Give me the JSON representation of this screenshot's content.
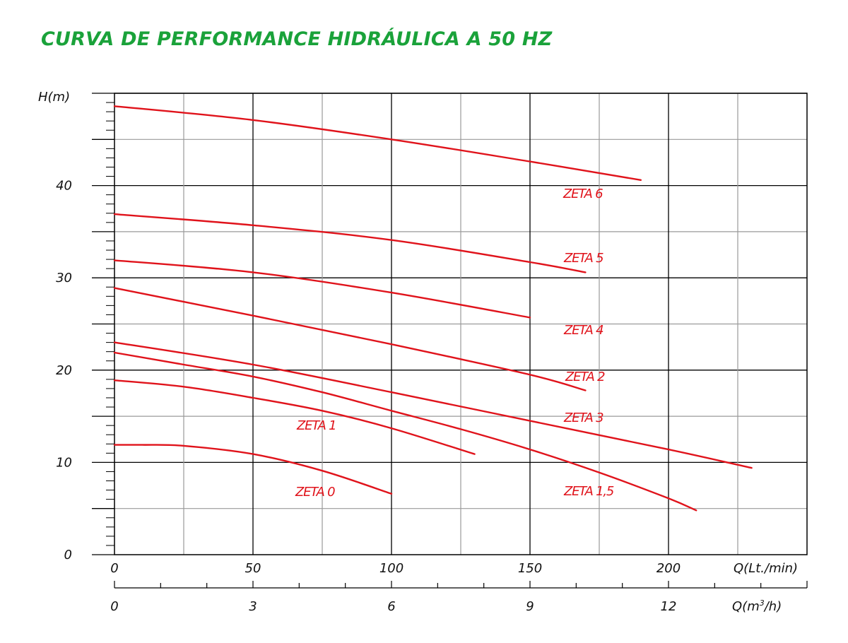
{
  "title": "CURVA DE PERFORMANCE HIDRÁULICA A 50 HZ",
  "colors": {
    "title": "#1aa23a",
    "curves": "#e0131b",
    "major_grid": "#000000",
    "minor_grid": "#9a9a9a"
  },
  "chart_data": {
    "type": "line",
    "title": "CURVA DE PERFORMANCE HIDRÁULICA A 50 HZ",
    "ylabel": "H(m)",
    "xlabel": "Q(Lt./min)",
    "x2label_prefix": "Q(m",
    "x2label_sup": "3",
    "x2label_suffix": "/h)",
    "xlim": [
      0,
      250
    ],
    "ylim": [
      0,
      50
    ],
    "x2lim": [
      0,
      15
    ],
    "grid": true,
    "x_ticks": [
      "0",
      "50",
      "100",
      "150",
      "200"
    ],
    "x2_ticks": [
      "0",
      "3",
      "6",
      "9",
      "12"
    ],
    "y_ticks": [
      "0",
      "10",
      "20",
      "30",
      "40"
    ],
    "series": [
      {
        "name": "ZETA 0",
        "label": "ZETA 0",
        "x": [
          0,
          10,
          25,
          50,
          75,
          100
        ],
        "y": [
          11.9,
          11.9,
          11.8,
          10.9,
          9.1,
          6.6
        ]
      },
      {
        "name": "ZETA 1",
        "label": "ZETA 1",
        "x": [
          0,
          25,
          50,
          75,
          100,
          130
        ],
        "y": [
          18.9,
          18.2,
          17.0,
          15.6,
          13.7,
          10.9
        ]
      },
      {
        "name": "ZETA 1,5",
        "label": "ZETA 1,5",
        "x": [
          0,
          25,
          50,
          75,
          100,
          125,
          150,
          175,
          200,
          210
        ],
        "y": [
          21.9,
          20.6,
          19.3,
          17.6,
          15.6,
          13.6,
          11.4,
          8.9,
          6.1,
          4.8
        ]
      },
      {
        "name": "ZETA 2",
        "label": "ZETA 2",
        "x": [
          0,
          50,
          100,
          150,
          170
        ],
        "y": [
          28.9,
          25.9,
          22.8,
          19.5,
          17.8
        ]
      },
      {
        "name": "ZETA 3",
        "label": "ZETA 3",
        "x": [
          0,
          50,
          100,
          150,
          200,
          230
        ],
        "y": [
          23.0,
          20.6,
          17.6,
          14.5,
          11.4,
          9.4
        ]
      },
      {
        "name": "ZETA 4",
        "label": "ZETA 4",
        "x": [
          0,
          50,
          100,
          150
        ],
        "y": [
          31.9,
          30.6,
          28.4,
          25.7
        ]
      },
      {
        "name": "ZETA 5",
        "label": "ZETA 5",
        "x": [
          0,
          50,
          100,
          150,
          170
        ],
        "y": [
          36.9,
          35.7,
          34.1,
          31.7,
          30.6
        ]
      },
      {
        "name": "ZETA 6",
        "label": "ZETA 6",
        "x": [
          0,
          50,
          100,
          150,
          190
        ],
        "y": [
          48.6,
          47.1,
          45.0,
          42.6,
          40.6
        ]
      }
    ]
  }
}
